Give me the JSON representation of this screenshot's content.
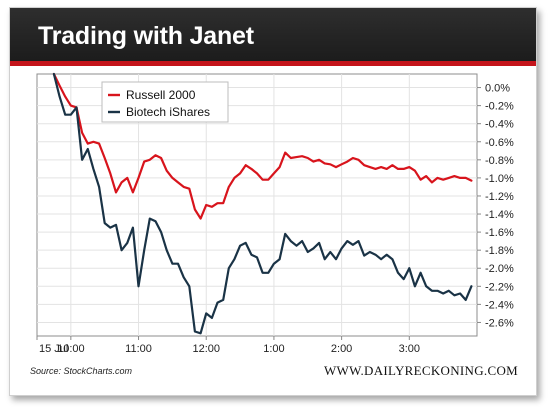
{
  "title": "Trading with Janet",
  "source": "Source: StockCharts.com",
  "brand": "WWW.DAILYRECKONING.COM",
  "colors": {
    "russell": "#d8141c",
    "biotech": "#1a3346",
    "accent": "#c4141b"
  },
  "chart_data": {
    "type": "line",
    "title": "Trading with Janet",
    "xlabel": "",
    "ylabel": "",
    "ylim": [
      -2.75,
      0.15
    ],
    "xlim": [
      0,
      390
    ],
    "x_ticks": [
      {
        "x": 0,
        "label": "15 Jul"
      },
      {
        "x": 30,
        "label": "10:00"
      },
      {
        "x": 90,
        "label": "11:00"
      },
      {
        "x": 150,
        "label": "12:00"
      },
      {
        "x": 210,
        "label": "1:00"
      },
      {
        "x": 270,
        "label": "2:00"
      },
      {
        "x": 330,
        "label": "3:00"
      }
    ],
    "y_ticks": [
      "0.0%",
      "-0.2%",
      "-0.4%",
      "-0.6%",
      "-0.8%",
      "-1.0%",
      "-1.2%",
      "-1.4%",
      "-1.6%",
      "-1.8%",
      "-2.0%",
      "-2.2%",
      "-2.4%",
      "-2.6%"
    ],
    "y_tick_values": [
      0.0,
      -0.2,
      -0.4,
      -0.6,
      -0.8,
      -1.0,
      -1.2,
      -1.4,
      -1.6,
      -1.8,
      -2.0,
      -2.2,
      -2.4,
      -2.6
    ],
    "legend": "top-left",
    "series": [
      {
        "name": "Russell 2000",
        "color": "#d8141c",
        "x": [
          15,
          20,
          25,
          30,
          35,
          40,
          45,
          50,
          55,
          60,
          65,
          70,
          75,
          80,
          85,
          90,
          95,
          100,
          105,
          110,
          115,
          120,
          125,
          130,
          135,
          140,
          145,
          150,
          155,
          160,
          165,
          170,
          175,
          180,
          185,
          190,
          195,
          200,
          205,
          210,
          215,
          220,
          225,
          230,
          235,
          240,
          245,
          250,
          255,
          260,
          265,
          270,
          275,
          280,
          285,
          290,
          295,
          300,
          305,
          310,
          315,
          320,
          325,
          330,
          335,
          340,
          345,
          350,
          355,
          360,
          365,
          370,
          375,
          380,
          385
        ],
        "values": [
          0.15,
          0.02,
          -0.1,
          -0.2,
          -0.22,
          -0.5,
          -0.62,
          -0.6,
          -0.62,
          -0.78,
          -0.95,
          -1.16,
          -1.05,
          -1.0,
          -1.16,
          -1.0,
          -0.82,
          -0.8,
          -0.75,
          -0.78,
          -0.92,
          -1.0,
          -1.05,
          -1.1,
          -1.12,
          -1.35,
          -1.45,
          -1.3,
          -1.32,
          -1.28,
          -1.28,
          -1.1,
          -1.0,
          -0.95,
          -0.86,
          -0.9,
          -0.95,
          -1.02,
          -1.02,
          -0.95,
          -0.88,
          -0.72,
          -0.78,
          -0.77,
          -0.76,
          -0.78,
          -0.82,
          -0.8,
          -0.84,
          -0.85,
          -0.88,
          -0.85,
          -0.82,
          -0.78,
          -0.8,
          -0.86,
          -0.88,
          -0.9,
          -0.88,
          -0.9,
          -0.86,
          -0.9,
          -0.9,
          -0.88,
          -0.92,
          -1.02,
          -0.98,
          -1.05,
          -1.0,
          -1.02,
          -1.0,
          -0.98,
          -1.0,
          -1.0,
          -1.03
        ]
      },
      {
        "name": "Biotech iShares",
        "color": "#1a3346",
        "x": [
          15,
          20,
          25,
          30,
          35,
          40,
          45,
          50,
          55,
          60,
          65,
          70,
          75,
          80,
          85,
          90,
          95,
          100,
          105,
          110,
          115,
          120,
          125,
          130,
          135,
          140,
          145,
          150,
          155,
          160,
          165,
          170,
          175,
          180,
          185,
          190,
          195,
          200,
          205,
          210,
          215,
          220,
          225,
          230,
          235,
          240,
          245,
          250,
          255,
          260,
          265,
          270,
          275,
          280,
          285,
          290,
          295,
          300,
          305,
          310,
          315,
          320,
          325,
          330,
          335,
          340,
          345,
          350,
          355,
          360,
          365,
          370,
          375,
          380,
          385
        ],
        "values": [
          0.15,
          -0.1,
          -0.3,
          -0.3,
          -0.22,
          -0.8,
          -0.68,
          -0.9,
          -1.1,
          -1.5,
          -1.55,
          -1.52,
          -1.8,
          -1.72,
          -1.55,
          -2.2,
          -1.8,
          -1.45,
          -1.48,
          -1.6,
          -1.8,
          -1.95,
          -1.95,
          -2.1,
          -2.2,
          -2.7,
          -2.72,
          -2.5,
          -2.55,
          -2.38,
          -2.35,
          -2.0,
          -1.9,
          -1.75,
          -1.72,
          -1.85,
          -1.88,
          -2.05,
          -2.05,
          -1.95,
          -1.9,
          -1.62,
          -1.7,
          -1.75,
          -1.7,
          -1.82,
          -1.78,
          -1.72,
          -1.9,
          -1.82,
          -1.9,
          -1.78,
          -1.7,
          -1.74,
          -1.7,
          -1.86,
          -1.82,
          -1.85,
          -1.9,
          -1.85,
          -1.9,
          -2.05,
          -2.12,
          -2.0,
          -2.2,
          -2.05,
          -2.2,
          -2.25,
          -2.25,
          -2.28,
          -2.25,
          -2.3,
          -2.28,
          -2.35,
          -2.2
        ]
      }
    ]
  }
}
